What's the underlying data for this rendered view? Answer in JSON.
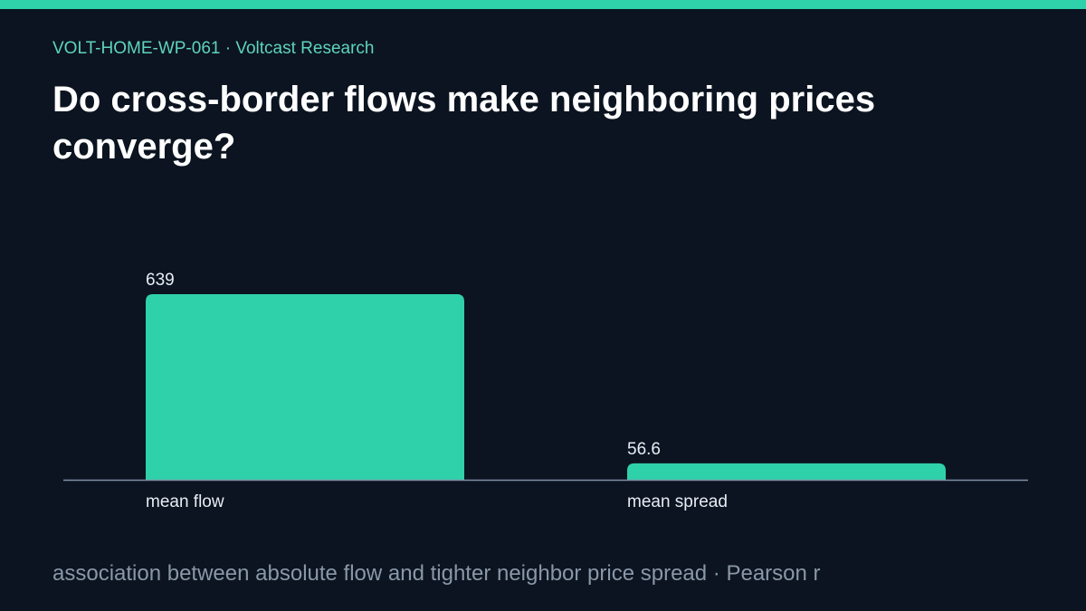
{
  "header": {
    "kicker": "VOLT-HOME-WP-061 · Voltcast Research",
    "title": "Do cross-border flows make neighboring prices converge?"
  },
  "footer": {
    "note": "association between absolute flow and tighter neighbor price spread · Pearson r"
  },
  "colors": {
    "accent": "#2fd1ab",
    "background": "#0b1420",
    "baseline": "#8090a8",
    "label": "#e6edf5"
  },
  "chart_data": {
    "type": "bar",
    "categories": [
      "mean flow",
      "mean spread"
    ],
    "values": [
      639,
      56.6
    ],
    "value_labels": [
      "639",
      "56.6"
    ],
    "title": "",
    "xlabel": "",
    "ylabel": "",
    "ylim": [
      0,
      639
    ],
    "grid": false,
    "legend": "none"
  }
}
